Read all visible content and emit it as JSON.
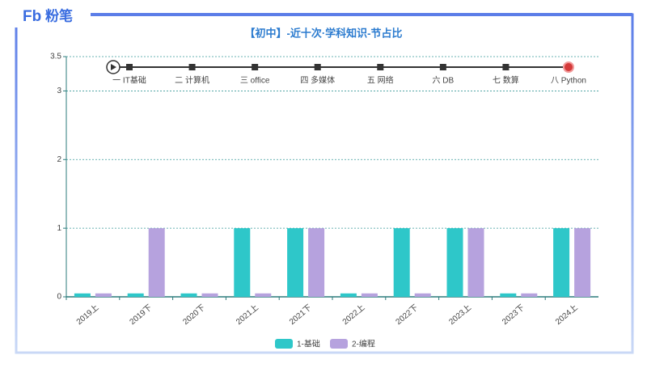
{
  "logo": {
    "mark": "Fb",
    "text": "粉笔"
  },
  "chart_data": {
    "type": "bar",
    "title": "【初中】-近十次·学科知识-节占比",
    "timeline": [
      "一 IT基础",
      "二 计算机",
      "三 office",
      "四 多媒体",
      "五 网络",
      "六 DB",
      "七 数算",
      "八 Python"
    ],
    "categories": [
      "2019上",
      "2019下",
      "2020下",
      "2021上",
      "2021下",
      "2022上",
      "2022下",
      "2023上",
      "2023下",
      "2024上"
    ],
    "series": [
      {
        "name": "1-基础",
        "color": "#2ec7c9",
        "values": [
          0.05,
          0.05,
          0.05,
          1,
          1,
          0.05,
          1,
          1,
          0.05,
          1
        ]
      },
      {
        "name": "2-编程",
        "color": "#b6a2de",
        "values": [
          0.05,
          1,
          0.05,
          0.05,
          1,
          0.05,
          0.05,
          1,
          0.05,
          1
        ]
      }
    ],
    "ylim": [
      0,
      3.5
    ],
    "yticks": [
      0,
      1,
      2,
      3,
      3.5
    ],
    "grid": true
  }
}
